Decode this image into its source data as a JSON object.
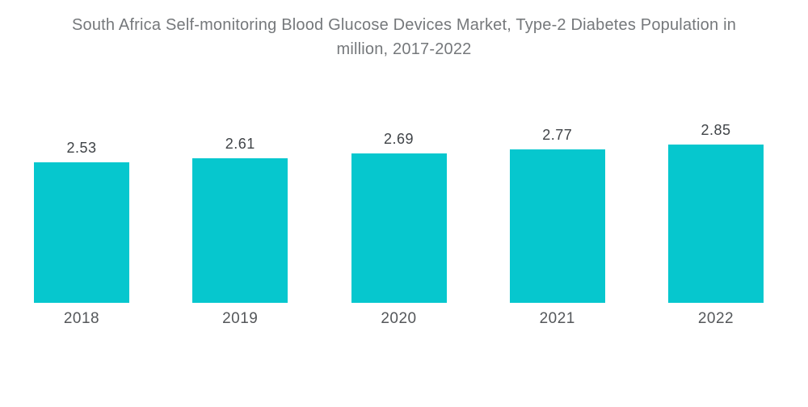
{
  "chart_data": {
    "type": "bar",
    "title": "South Africa Self-monitoring Blood Glucose Devices Market, Type-2 Diabetes Population in million, 2017-2022",
    "categories": [
      "2018",
      "2019",
      "2020",
      "2021",
      "2022"
    ],
    "values": [
      2.53,
      2.61,
      2.69,
      2.77,
      2.85
    ],
    "value_labels": [
      "2.53",
      "2.61",
      "2.69",
      "2.77",
      "2.85"
    ],
    "ylim": [
      0,
      3.4
    ],
    "grid": false,
    "legend": "none",
    "colors": {
      "bar": "#06C7CE",
      "title_text": "#75787B",
      "value_label_text": "#3F4347",
      "axis_label_text": "#54575A",
      "background": "#FFFFFF"
    }
  }
}
